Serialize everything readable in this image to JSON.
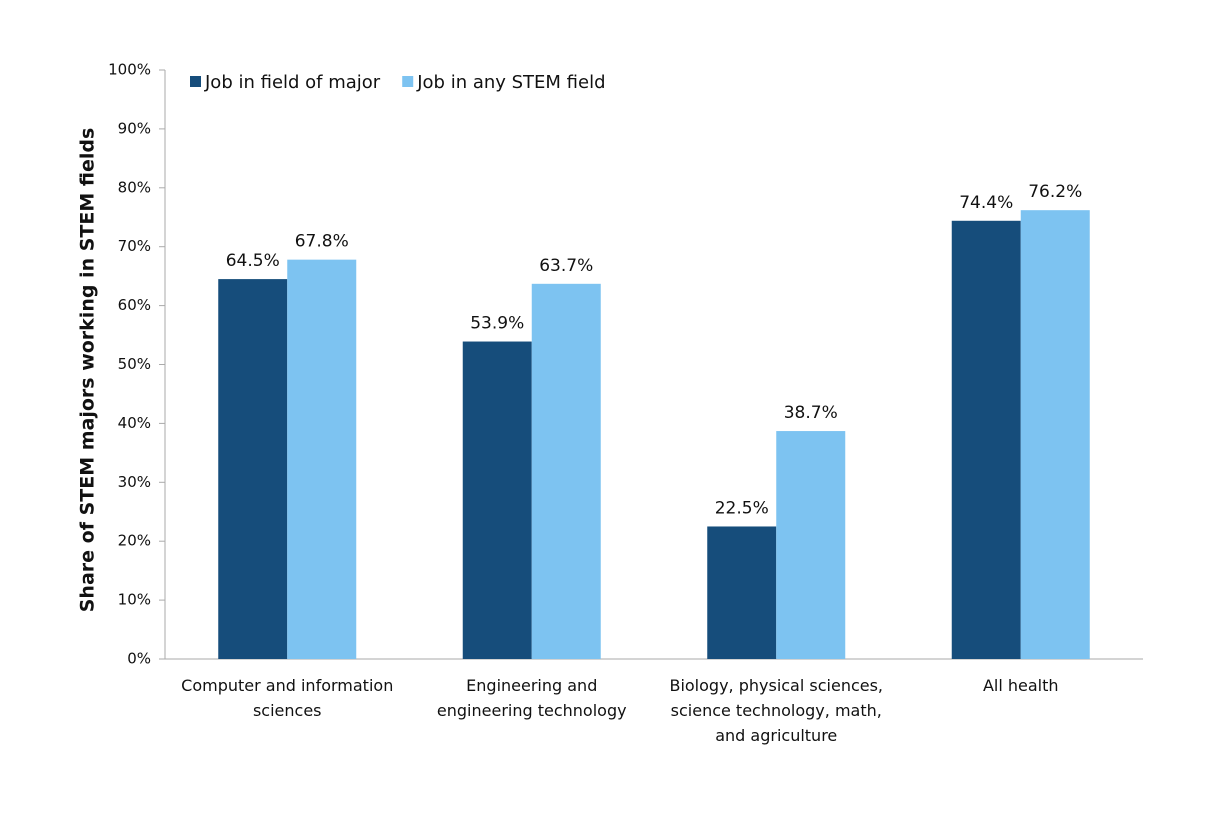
{
  "chart_data": {
    "type": "bar",
    "y_label": "Share of STEM majors working in STEM fields",
    "categories": [
      "Computer and information sciences",
      "Engineering and engineering technology",
      "Biology, physical sciences, science technology, math, and agriculture",
      "All health"
    ],
    "series": [
      {
        "name": "Job in field of major",
        "color": "#164d7b",
        "values": [
          64.5,
          53.9,
          22.5,
          74.4
        ],
        "value_labels": [
          "64.5%",
          "53.9%",
          "22.5%",
          "74.4%"
        ]
      },
      {
        "name": "Job in any STEM field",
        "color": "#7dc3f1",
        "values": [
          67.8,
          63.7,
          38.7,
          76.2
        ],
        "value_labels": [
          "67.8%",
          "63.7%",
          "38.7%",
          "76.2%"
        ]
      }
    ],
    "ylim": [
      0,
      100
    ],
    "yticks": [
      {
        "value": 0,
        "label": "0%"
      },
      {
        "value": 10,
        "label": "10%"
      },
      {
        "value": 20,
        "label": "20%"
      },
      {
        "value": 30,
        "label": "30%"
      },
      {
        "value": 40,
        "label": "40%"
      },
      {
        "value": 50,
        "label": "50%"
      },
      {
        "value": 60,
        "label": "60%"
      },
      {
        "value": 70,
        "label": "70%"
      },
      {
        "value": 80,
        "label": "80%"
      },
      {
        "value": 90,
        "label": "90%"
      },
      {
        "value": 100,
        "label": "100%"
      }
    ],
    "grid": false,
    "legend": "top-left"
  }
}
